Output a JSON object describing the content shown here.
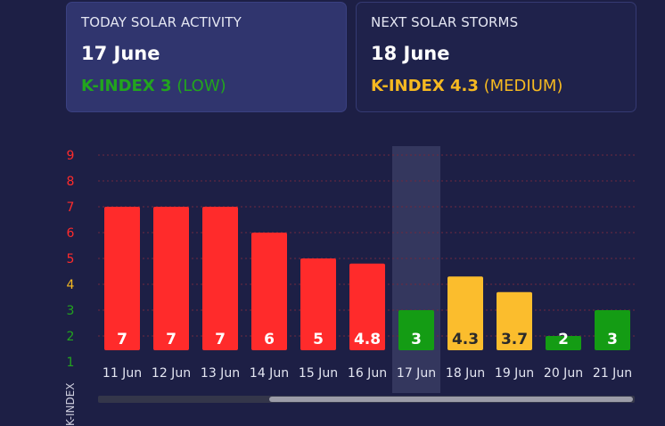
{
  "today": {
    "label": "TODAY SOLAR ACTIVITY",
    "date": "17 June",
    "kindex_prefix": "K-INDEX 3",
    "kindex_level": "(LOW)",
    "color": "#22a51e"
  },
  "next": {
    "label": "NEXT SOLAR STORMS",
    "date": "18 June",
    "kindex_prefix": "K-INDEX 4.3",
    "kindex_level": "(MEDIUM)",
    "color": "#f5b921"
  },
  "colors": {
    "high": "#ff2b2b",
    "medium": "#fbbd2d",
    "low": "#149c14",
    "grid": "#6e2a3e",
    "highlight": "#34375e"
  },
  "chart_data": {
    "type": "bar",
    "categories": [
      "11 Jun",
      "12 Jun",
      "13 Jun",
      "14 Jun",
      "15 Jun",
      "16 Jun",
      "17 Jun",
      "18 Jun",
      "19 Jun",
      "20 Jun",
      "21 Jun"
    ],
    "values": [
      7,
      7,
      7,
      6,
      5,
      4.8,
      3,
      4.3,
      3.7,
      2,
      3
    ],
    "labels": [
      "7",
      "7",
      "7",
      "6",
      "5",
      "4.8",
      "3",
      "4.3",
      "3.7",
      "2",
      "3"
    ],
    "levels": [
      "high",
      "high",
      "high",
      "high",
      "high",
      "high",
      "low",
      "medium",
      "medium",
      "low",
      "low"
    ],
    "ylabel": "K-INDEX",
    "yticks": [
      "1",
      "2",
      "3",
      "4",
      "5",
      "6",
      "7",
      "8",
      "9"
    ],
    "ytick_colors": [
      "#22a51e",
      "#22a51e",
      "#22a51e",
      "#f5b921",
      "#ff2b2b",
      "#ff2b2b",
      "#ff2b2b",
      "#ff2b2b",
      "#ff2b2b"
    ],
    "ylim": [
      1,
      9
    ],
    "highlight_category": "17 Jun",
    "grid": true
  }
}
